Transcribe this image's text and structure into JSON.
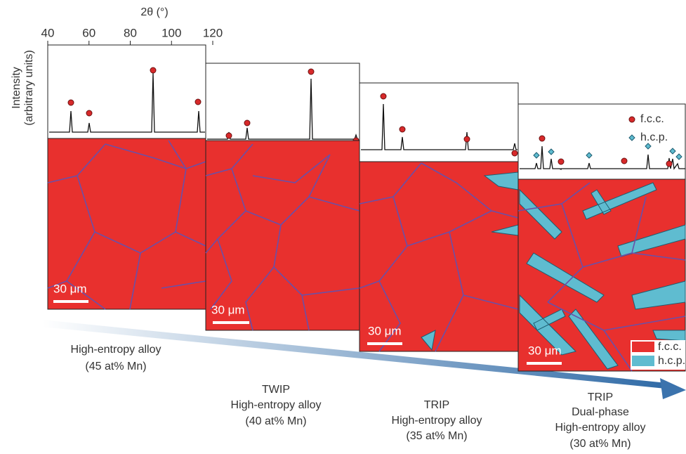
{
  "axis": {
    "label": "2θ (°)",
    "ticks": [
      40,
      60,
      80,
      100,
      120
    ]
  },
  "y_label": [
    "Intensity",
    "(arbitrary units)"
  ],
  "panels": [
    {
      "scale_bar": "30 μm",
      "caption": [
        "High-entropy alloy",
        "(45 at% Mn)"
      ]
    },
    {
      "scale_bar": "30 μm",
      "caption": [
        "TWIP",
        "High-entropy alloy",
        "(40 at% Mn)"
      ]
    },
    {
      "scale_bar": "30 μm",
      "caption": [
        "TRIP",
        "High-entropy alloy",
        "(35 at% Mn)"
      ]
    },
    {
      "scale_bar": "30 μm",
      "caption": [
        "TRIP",
        "Dual-phase",
        "High-entropy alloy",
        "(30 at% Mn)"
      ]
    }
  ],
  "xrd_legend": [
    "f.c.c.",
    "h.c.p."
  ],
  "map_legend": [
    "f.c.c.",
    "h.c.p."
  ]
}
